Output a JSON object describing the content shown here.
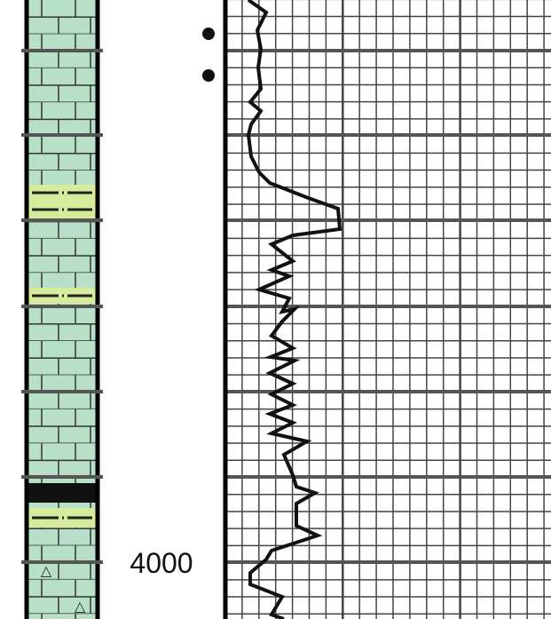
{
  "depth_label": "4000"
}
